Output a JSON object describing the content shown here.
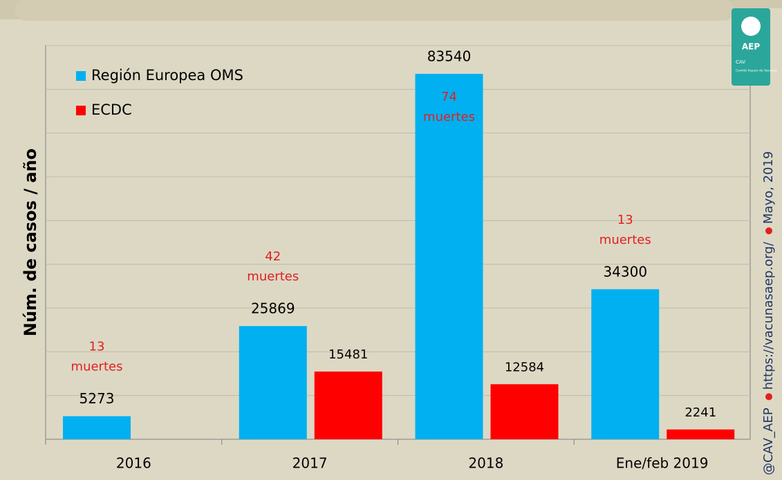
{
  "chart_data": {
    "type": "bar",
    "y_axis_label": "Núm. de casos / año",
    "categories": [
      "2016",
      "2017",
      "2018",
      "Ene/feb 2019"
    ],
    "series": [
      {
        "name": "Región Europea OMS",
        "color": "#00b0f0",
        "values": [
          5273,
          25869,
          83540,
          34300
        ]
      },
      {
        "name": "ECDC",
        "color": "#ff0000",
        "values": [
          null,
          15481,
          12584,
          2241
        ]
      }
    ],
    "ylim": [
      0,
      90000
    ],
    "yticks": [
      0,
      10000,
      20000,
      30000,
      40000,
      50000,
      60000,
      70000,
      80000,
      90000
    ],
    "grid": true,
    "annotations": [
      {
        "category": "2016",
        "lines": [
          "13",
          "muertes"
        ]
      },
      {
        "category": "2017",
        "lines": [
          "42",
          "muertes"
        ]
      },
      {
        "category": "2018",
        "lines": [
          "74",
          "muertes"
        ]
      },
      {
        "category": "Ene/feb 2019",
        "lines": [
          "13",
          "muertes"
        ]
      }
    ],
    "side_note": [
      "@CAV_AEP",
      "https://vacunasaep.org/",
      "Mayo, 2019"
    ],
    "logo": {
      "title": "AEP",
      "subtitle": "CAV",
      "caption": "Comité Asesor de Vacunas"
    }
  }
}
